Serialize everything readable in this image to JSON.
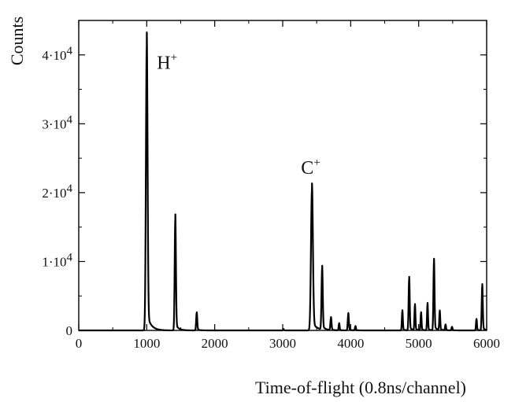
{
  "chart_data": {
    "type": "line",
    "xlabel": "Time-of-flight (0.8ns/channel)",
    "ylabel": "Counts",
    "xlim": [
      0,
      6000
    ],
    "ylim": [
      0,
      45000
    ],
    "x_ticks": [
      0,
      1000,
      2000,
      3000,
      4000,
      5000,
      6000
    ],
    "y_ticks": [
      {
        "value": 0,
        "mantissa": "0",
        "exponent": ""
      },
      {
        "value": 10000,
        "mantissa": "1·10",
        "exponent": "4"
      },
      {
        "value": 20000,
        "mantissa": "2·10",
        "exponent": "4"
      },
      {
        "value": 30000,
        "mantissa": "3·10",
        "exponent": "4"
      },
      {
        "value": 40000,
        "mantissa": "4·10",
        "exponent": "4"
      }
    ],
    "grid": false,
    "line_color": "#000000",
    "peaks": [
      {
        "x": 1000,
        "height": 41000,
        "width": 12
      },
      {
        "x": 1420,
        "height": 16000,
        "width": 9
      },
      {
        "x": 1735,
        "height": 2500,
        "width": 8
      },
      {
        "x": 3010,
        "height": 200,
        "width": 6
      },
      {
        "x": 3430,
        "height": 20200,
        "width": 14
      },
      {
        "x": 3580,
        "height": 8800,
        "width": 9
      },
      {
        "x": 3710,
        "height": 1800,
        "width": 8
      },
      {
        "x": 3830,
        "height": 1000,
        "width": 7
      },
      {
        "x": 3965,
        "height": 2400,
        "width": 8
      },
      {
        "x": 4070,
        "height": 600,
        "width": 7
      },
      {
        "x": 4760,
        "height": 2800,
        "width": 7
      },
      {
        "x": 4860,
        "height": 7400,
        "width": 8
      },
      {
        "x": 4945,
        "height": 3600,
        "width": 7
      },
      {
        "x": 5035,
        "height": 2500,
        "width": 7
      },
      {
        "x": 5130,
        "height": 3800,
        "width": 7
      },
      {
        "x": 5225,
        "height": 9900,
        "width": 8
      },
      {
        "x": 5310,
        "height": 2700,
        "width": 7
      },
      {
        "x": 5395,
        "height": 800,
        "width": 7
      },
      {
        "x": 5490,
        "height": 500,
        "width": 7
      },
      {
        "x": 5850,
        "height": 1600,
        "width": 7
      },
      {
        "x": 5935,
        "height": 6400,
        "width": 8
      }
    ],
    "annotations": [
      {
        "base": "H",
        "sup": "+",
        "x": 1150,
        "y": 38000
      },
      {
        "base": "C",
        "sup": "+",
        "x": 3270,
        "y": 22700
      }
    ]
  }
}
